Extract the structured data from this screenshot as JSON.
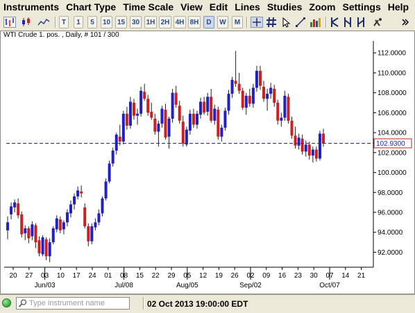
{
  "menu": [
    "Instruments",
    "Chart Type",
    "Time Scale",
    "View",
    "Edit",
    "Lines",
    "Studies",
    "Zoom",
    "Settings",
    "Help"
  ],
  "toolbar": {
    "timeframes": [
      "T",
      "1",
      "5",
      "10",
      "15",
      "30",
      "1H",
      "2H",
      "4H",
      "8H",
      "D",
      "W",
      "M"
    ],
    "active_timeframe": "D",
    "icons": [
      "bar-chart-icon",
      "candlestick-icon",
      "line-chart-icon",
      "crosshair-icon",
      "grid-icon",
      "cursor-icon",
      "line-tool-icon",
      "bar-volume-icon",
      "candle-tool-icon",
      "candle-tool-2-icon",
      "candle-tool-3-icon",
      "candle-tool-4-icon",
      "magnet-icon",
      "overflow-icon"
    ]
  },
  "chart": {
    "title": "WTI Crude 1. pos. , Daily, # 101 / 300",
    "current_price_label": "102.9300",
    "colors": {
      "up": "#1f1fcc",
      "down": "#cc1f1f",
      "price_line": "#1f1fcc",
      "background": "#ffffff"
    }
  },
  "chart_data": {
    "type": "candlestick",
    "title": "WTI Crude 1. pos. , Daily, # 101 / 300",
    "ylim": [
      90.5,
      113.2
    ],
    "y_ticks": [
      "112.0000",
      "110.0000",
      "108.0000",
      "106.0000",
      "104.0000",
      "102.0000",
      "100.0000",
      "98.0000",
      "96.0000",
      "94.0000",
      "92.0000"
    ],
    "y_tick_values": [
      112,
      110,
      108,
      106,
      104,
      102,
      100,
      98,
      96,
      94,
      92
    ],
    "x_tick_labels": [
      "20",
      "27",
      "03",
      "10",
      "17",
      "24",
      "01",
      "08",
      "15",
      "22",
      "29",
      "05",
      "12",
      "19",
      "26",
      "02",
      "09",
      "16",
      "23",
      "30",
      "07",
      "14",
      "21"
    ],
    "month_labels": [
      "Jun/03",
      "Jul/08",
      "Aug/05",
      "Sep/02",
      "Oct/07"
    ],
    "current_price": 102.93,
    "candles": [
      {
        "o": 94.2,
        "h": 95.6,
        "l": 93.3,
        "c": 95.0,
        "up": true
      },
      {
        "o": 95.8,
        "h": 97.0,
        "l": 95.3,
        "c": 96.6,
        "up": true
      },
      {
        "o": 96.5,
        "h": 97.3,
        "l": 96.0,
        "c": 97.0,
        "up": true
      },
      {
        "o": 96.9,
        "h": 97.4,
        "l": 95.4,
        "c": 95.7,
        "up": false
      },
      {
        "o": 95.8,
        "h": 96.1,
        "l": 93.5,
        "c": 93.8,
        "up": false
      },
      {
        "o": 93.9,
        "h": 94.7,
        "l": 93.2,
        "c": 94.4,
        "up": true
      },
      {
        "o": 94.4,
        "h": 94.6,
        "l": 92.9,
        "c": 93.4,
        "up": false
      },
      {
        "o": 93.6,
        "h": 95.1,
        "l": 93.2,
        "c": 94.8,
        "up": true
      },
      {
        "o": 94.7,
        "h": 94.9,
        "l": 92.4,
        "c": 93.0,
        "up": false
      },
      {
        "o": 93.2,
        "h": 93.6,
        "l": 91.6,
        "c": 91.9,
        "up": false
      },
      {
        "o": 91.8,
        "h": 93.7,
        "l": 91.6,
        "c": 93.5,
        "up": true
      },
      {
        "o": 93.3,
        "h": 93.5,
        "l": 91.2,
        "c": 91.6,
        "up": false
      },
      {
        "o": 91.6,
        "h": 93.4,
        "l": 91.0,
        "c": 93.0,
        "up": true
      },
      {
        "o": 93.0,
        "h": 94.6,
        "l": 92.8,
        "c": 94.4,
        "up": true
      },
      {
        "o": 94.3,
        "h": 95.7,
        "l": 94.0,
        "c": 95.4,
        "up": true
      },
      {
        "o": 95.3,
        "h": 95.6,
        "l": 93.9,
        "c": 94.2,
        "up": false
      },
      {
        "o": 94.3,
        "h": 95.2,
        "l": 93.8,
        "c": 95.0,
        "up": true
      },
      {
        "o": 95.0,
        "h": 96.3,
        "l": 94.6,
        "c": 96.0,
        "up": true
      },
      {
        "o": 95.9,
        "h": 97.2,
        "l": 95.5,
        "c": 96.8,
        "up": true
      },
      {
        "o": 96.8,
        "h": 97.9,
        "l": 96.3,
        "c": 97.6,
        "up": true
      },
      {
        "o": 97.6,
        "h": 98.6,
        "l": 97.3,
        "c": 98.2,
        "up": true
      },
      {
        "o": 98.1,
        "h": 98.7,
        "l": 97.5,
        "c": 97.9,
        "up": false
      },
      {
        "o": 96.5,
        "h": 96.9,
        "l": 94.4,
        "c": 94.6,
        "up": false
      },
      {
        "o": 94.6,
        "h": 94.9,
        "l": 92.6,
        "c": 93.1,
        "up": false
      },
      {
        "o": 93.1,
        "h": 94.9,
        "l": 92.8,
        "c": 94.6,
        "up": true
      },
      {
        "o": 94.5,
        "h": 95.4,
        "l": 94.2,
        "c": 95.0,
        "up": true
      },
      {
        "o": 95.0,
        "h": 96.3,
        "l": 94.7,
        "c": 95.9,
        "up": true
      },
      {
        "o": 95.9,
        "h": 97.6,
        "l": 95.6,
        "c": 97.4,
        "up": true
      },
      {
        "o": 97.4,
        "h": 99.4,
        "l": 97.2,
        "c": 99.1,
        "up": true
      },
      {
        "o": 99.1,
        "h": 101.2,
        "l": 98.9,
        "c": 100.9,
        "up": true
      },
      {
        "o": 100.9,
        "h": 102.5,
        "l": 100.6,
        "c": 102.2,
        "up": true
      },
      {
        "o": 102.2,
        "h": 104.0,
        "l": 101.8,
        "c": 103.8,
        "up": true
      },
      {
        "o": 103.6,
        "h": 104.8,
        "l": 102.7,
        "c": 103.1,
        "up": false
      },
      {
        "o": 103.1,
        "h": 106.2,
        "l": 102.8,
        "c": 105.9,
        "up": true
      },
      {
        "o": 105.9,
        "h": 106.6,
        "l": 104.3,
        "c": 104.7,
        "up": false
      },
      {
        "o": 104.7,
        "h": 107.6,
        "l": 104.4,
        "c": 107.1,
        "up": true
      },
      {
        "o": 107.0,
        "h": 107.4,
        "l": 105.3,
        "c": 105.7,
        "up": false
      },
      {
        "o": 105.7,
        "h": 106.4,
        "l": 104.8,
        "c": 105.9,
        "up": true
      },
      {
        "o": 105.9,
        "h": 108.6,
        "l": 105.6,
        "c": 108.2,
        "up": true
      },
      {
        "o": 108.1,
        "h": 108.9,
        "l": 107.2,
        "c": 107.4,
        "up": false
      },
      {
        "o": 107.4,
        "h": 107.8,
        "l": 105.7,
        "c": 106.0,
        "up": false
      },
      {
        "o": 106.1,
        "h": 107.0,
        "l": 105.3,
        "c": 105.5,
        "up": false
      },
      {
        "o": 105.4,
        "h": 105.9,
        "l": 103.8,
        "c": 104.1,
        "up": false
      },
      {
        "o": 104.1,
        "h": 105.2,
        "l": 102.6,
        "c": 104.9,
        "up": true
      },
      {
        "o": 104.9,
        "h": 106.7,
        "l": 104.5,
        "c": 106.4,
        "up": true
      },
      {
        "o": 106.3,
        "h": 106.9,
        "l": 103.3,
        "c": 103.5,
        "up": false
      },
      {
        "o": 103.6,
        "h": 105.6,
        "l": 102.4,
        "c": 105.4,
        "up": true
      },
      {
        "o": 105.4,
        "h": 108.4,
        "l": 105.0,
        "c": 108.0,
        "up": true
      },
      {
        "o": 108.0,
        "h": 108.7,
        "l": 106.5,
        "c": 106.8,
        "up": false
      },
      {
        "o": 106.7,
        "h": 107.2,
        "l": 104.9,
        "c": 105.2,
        "up": false
      },
      {
        "o": 105.1,
        "h": 105.7,
        "l": 102.6,
        "c": 102.9,
        "up": false
      },
      {
        "o": 102.8,
        "h": 104.6,
        "l": 102.6,
        "c": 104.3,
        "up": true
      },
      {
        "o": 104.2,
        "h": 106.3,
        "l": 103.8,
        "c": 105.9,
        "up": true
      },
      {
        "o": 105.9,
        "h": 106.4,
        "l": 104.5,
        "c": 104.8,
        "up": false
      },
      {
        "o": 104.8,
        "h": 106.2,
        "l": 104.4,
        "c": 105.9,
        "up": true
      },
      {
        "o": 105.8,
        "h": 107.5,
        "l": 105.4,
        "c": 107.1,
        "up": true
      },
      {
        "o": 107.1,
        "h": 107.6,
        "l": 105.8,
        "c": 106.0,
        "up": false
      },
      {
        "o": 106.1,
        "h": 108.0,
        "l": 105.7,
        "c": 107.6,
        "up": true
      },
      {
        "o": 107.6,
        "h": 108.4,
        "l": 105.0,
        "c": 105.2,
        "up": false
      },
      {
        "o": 105.2,
        "h": 106.8,
        "l": 104.8,
        "c": 106.4,
        "up": true
      },
      {
        "o": 106.3,
        "h": 106.6,
        "l": 103.3,
        "c": 103.6,
        "up": false
      },
      {
        "o": 103.6,
        "h": 104.8,
        "l": 103.1,
        "c": 104.5,
        "up": true
      },
      {
        "o": 104.5,
        "h": 106.5,
        "l": 104.2,
        "c": 106.2,
        "up": true
      },
      {
        "o": 106.2,
        "h": 108.3,
        "l": 105.8,
        "c": 107.9,
        "up": true
      },
      {
        "o": 107.9,
        "h": 109.6,
        "l": 107.5,
        "c": 109.3,
        "up": true
      },
      {
        "o": 109.2,
        "h": 112.2,
        "l": 108.6,
        "c": 108.9,
        "up": false
      },
      {
        "o": 108.9,
        "h": 110.0,
        "l": 107.9,
        "c": 108.2,
        "up": false
      },
      {
        "o": 108.2,
        "h": 108.5,
        "l": 106.3,
        "c": 106.5,
        "up": false
      },
      {
        "o": 106.5,
        "h": 108.0,
        "l": 105.8,
        "c": 107.7,
        "up": true
      },
      {
        "o": 107.7,
        "h": 108.4,
        "l": 106.6,
        "c": 106.9,
        "up": false
      },
      {
        "o": 106.9,
        "h": 108.9,
        "l": 106.5,
        "c": 108.5,
        "up": true
      },
      {
        "o": 108.5,
        "h": 110.7,
        "l": 108.1,
        "c": 110.2,
        "up": true
      },
      {
        "o": 110.2,
        "h": 110.7,
        "l": 108.3,
        "c": 108.7,
        "up": false
      },
      {
        "o": 108.6,
        "h": 109.2,
        "l": 107.1,
        "c": 107.4,
        "up": false
      },
      {
        "o": 107.4,
        "h": 108.4,
        "l": 106.2,
        "c": 107.9,
        "up": true
      },
      {
        "o": 107.9,
        "h": 109.0,
        "l": 107.4,
        "c": 108.5,
        "up": true
      },
      {
        "o": 108.4,
        "h": 108.8,
        "l": 106.6,
        "c": 107.0,
        "up": false
      },
      {
        "o": 107.0,
        "h": 107.3,
        "l": 104.8,
        "c": 105.2,
        "up": false
      },
      {
        "o": 105.2,
        "h": 106.0,
        "l": 104.6,
        "c": 105.5,
        "up": true
      },
      {
        "o": 105.5,
        "h": 108.2,
        "l": 105.2,
        "c": 107.7,
        "up": true
      },
      {
        "o": 107.6,
        "h": 107.9,
        "l": 104.9,
        "c": 105.2,
        "up": false
      },
      {
        "o": 105.2,
        "h": 105.6,
        "l": 103.4,
        "c": 103.7,
        "up": false
      },
      {
        "o": 103.7,
        "h": 104.6,
        "l": 102.4,
        "c": 102.7,
        "up": false
      },
      {
        "o": 102.7,
        "h": 103.9,
        "l": 102.3,
        "c": 103.5,
        "up": true
      },
      {
        "o": 103.4,
        "h": 103.8,
        "l": 101.8,
        "c": 102.1,
        "up": false
      },
      {
        "o": 102.1,
        "h": 103.2,
        "l": 101.6,
        "c": 102.8,
        "up": true
      },
      {
        "o": 102.8,
        "h": 103.1,
        "l": 101.3,
        "c": 101.7,
        "up": false
      },
      {
        "o": 101.7,
        "h": 102.6,
        "l": 101.0,
        "c": 102.3,
        "up": true
      },
      {
        "o": 102.3,
        "h": 102.6,
        "l": 101.1,
        "c": 101.4,
        "up": false
      },
      {
        "o": 101.4,
        "h": 104.2,
        "l": 101.2,
        "c": 103.9,
        "up": true
      },
      {
        "o": 103.9,
        "h": 104.4,
        "l": 102.6,
        "c": 102.9,
        "up": false
      }
    ]
  },
  "status": {
    "search_placeholder": "Type instrument name",
    "datetime": "02 Oct 2013 19:00:00 EDT"
  }
}
